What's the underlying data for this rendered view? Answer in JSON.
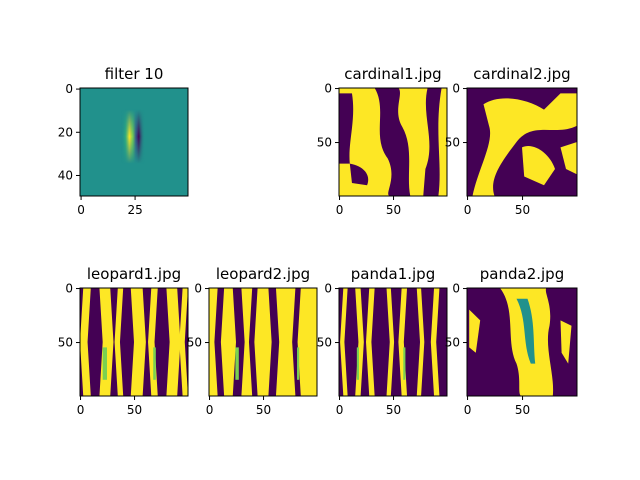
{
  "chart_data": [
    {
      "type": "heatmap",
      "title": "filter 10",
      "image": "vertical Gabor-like filter: narrow bright yellow band at left of center, dark violet band to its right, teal background",
      "extent": {
        "x": [
          0,
          49
        ],
        "y": [
          49,
          0
        ]
      },
      "xticks": [
        "0",
        "25"
      ],
      "yticks": [
        "0",
        "20",
        "40"
      ]
    },
    {
      "type": "heatmap",
      "title": "cardinal1.jpg",
      "image": "filter response map: mostly yellow with winding dark violet vertical streaks",
      "extent": {
        "x": [
          0,
          99
        ],
        "y": [
          99,
          0
        ]
      },
      "xticks": [
        "0",
        "50"
      ],
      "yticks": [
        "0",
        "50"
      ]
    },
    {
      "type": "heatmap",
      "title": "cardinal2.jpg",
      "image": "filter response map: yellow diagonal blobs over dark violet background",
      "extent": {
        "x": [
          0,
          99
        ],
        "y": [
          99,
          0
        ]
      },
      "xticks": [
        "0",
        "50"
      ],
      "yticks": [
        "0",
        "50"
      ]
    },
    {
      "type": "heatmap",
      "title": "leopard1.jpg",
      "image": "filter response map: yellow and dark violet vertical stripes",
      "extent": {
        "x": [
          0,
          99
        ],
        "y": [
          99,
          0
        ]
      },
      "xticks": [
        "0",
        "50"
      ],
      "yticks": [
        "0",
        "50"
      ]
    },
    {
      "type": "heatmap",
      "title": "leopard2.jpg",
      "image": "filter response map: mostly yellow with dark violet speckled vertical streaks",
      "extent": {
        "x": [
          0,
          99
        ],
        "y": [
          99,
          0
        ]
      },
      "xticks": [
        "0",
        "50"
      ],
      "yticks": [
        "0",
        "50"
      ]
    },
    {
      "type": "heatmap",
      "title": "panda1.jpg",
      "image": "filter response map: thin yellow and green vertical streaks on dark violet",
      "extent": {
        "x": [
          0,
          99
        ],
        "y": [
          99,
          0
        ]
      },
      "xticks": [
        "0",
        "50"
      ],
      "yticks": [
        "0",
        "50"
      ]
    },
    {
      "type": "heatmap",
      "title": "panda2.jpg",
      "image": "filter response map: broad wavy yellow band with teal center on dark violet",
      "extent": {
        "x": [
          0,
          99
        ],
        "y": [
          99,
          0
        ]
      },
      "xticks": [
        "0",
        "50"
      ],
      "yticks": [
        "0",
        "50"
      ]
    }
  ],
  "colors": {
    "yellow": "#fde725",
    "green": "#7ad151",
    "teal": "#21918c",
    "blue": "#3b528b",
    "violet": "#440154"
  }
}
